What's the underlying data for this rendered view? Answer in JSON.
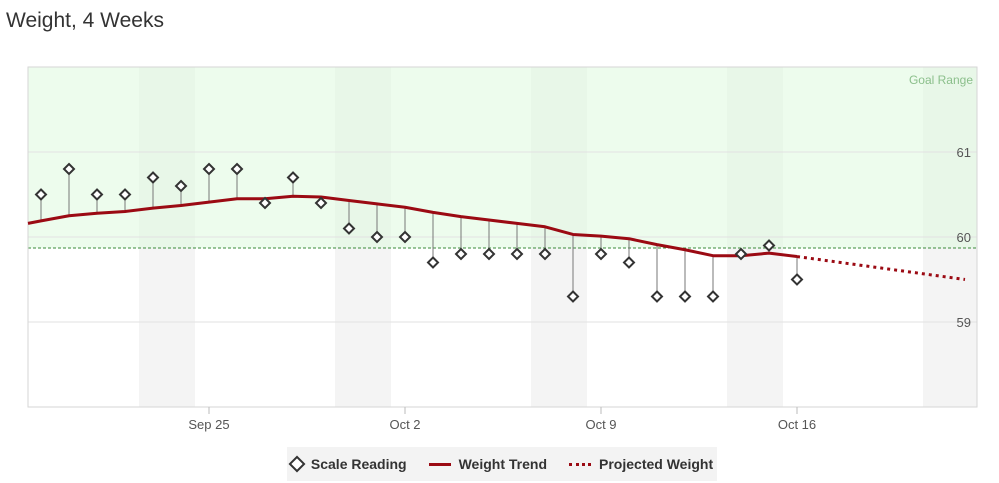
{
  "title": "Weight, 4 Weeks",
  "chart_data": {
    "type": "line",
    "title": "Weight, 4 Weeks",
    "x_ticks": [
      "Sep 25",
      "Oct 2",
      "Oct 9",
      "Oct 16"
    ],
    "x_range": [
      "Sep 19",
      "Oct 22"
    ],
    "y_range": [
      58,
      62
    ],
    "y_ticks": [
      59,
      60,
      61
    ],
    "goal_range": {
      "label": "Goal Range",
      "from": 59.87,
      "to": 62
    },
    "series": [
      {
        "name": "Scale Reading",
        "style": "diamond-markers",
        "color": "#333333",
        "x": [
          "Sep 19",
          "Sep 20",
          "Sep 21",
          "Sep 22",
          "Sep 23",
          "Sep 24",
          "Sep 25",
          "Sep 26",
          "Sep 27",
          "Sep 28",
          "Sep 29",
          "Sep 30",
          "Oct 1",
          "Oct 2",
          "Oct 3",
          "Oct 4",
          "Oct 5",
          "Oct 6",
          "Oct 7",
          "Oct 8",
          "Oct 9",
          "Oct 10",
          "Oct 11",
          "Oct 12",
          "Oct 13",
          "Oct 14",
          "Oct 15",
          "Oct 16"
        ],
        "values": [
          60.5,
          60.8,
          60.5,
          60.5,
          60.7,
          60.6,
          60.8,
          60.8,
          60.4,
          60.7,
          60.4,
          60.1,
          60.0,
          60.0,
          59.7,
          59.8,
          59.8,
          59.8,
          59.8,
          59.3,
          59.8,
          59.7,
          59.3,
          59.3,
          59.3,
          59.8,
          59.9,
          59.5
        ]
      },
      {
        "name": "Weight Trend",
        "style": "solid-line",
        "color": "#9b0a13",
        "x": [
          "Sep 18",
          "Sep 19",
          "Sep 20",
          "Sep 21",
          "Sep 22",
          "Sep 23",
          "Sep 24",
          "Sep 25",
          "Sep 26",
          "Sep 27",
          "Sep 28",
          "Sep 29",
          "Sep 30",
          "Oct 1",
          "Oct 2",
          "Oct 3",
          "Oct 4",
          "Oct 5",
          "Oct 6",
          "Oct 7",
          "Oct 8",
          "Oct 9",
          "Oct 10",
          "Oct 11",
          "Oct 12",
          "Oct 13",
          "Oct 14",
          "Oct 15",
          "Oct 16"
        ],
        "values": [
          60.16,
          60.19,
          60.25,
          60.28,
          60.3,
          60.34,
          60.37,
          60.41,
          60.45,
          60.45,
          60.48,
          60.47,
          60.43,
          60.39,
          60.35,
          60.29,
          60.24,
          60.2,
          60.16,
          60.12,
          60.03,
          60.01,
          59.98,
          59.91,
          59.85,
          59.78,
          59.78,
          59.81,
          59.77
        ]
      },
      {
        "name": "Projected Weight",
        "style": "dotted-line",
        "color": "#9b0a13",
        "x": [
          "Oct 16",
          "Oct 22"
        ],
        "values": [
          59.77,
          59.5
        ]
      }
    ],
    "legend": {
      "position": "bottom-center",
      "items": [
        "Scale Reading",
        "Weight Trend",
        "Projected Weight"
      ]
    },
    "colors": {
      "goal_fill": "#effcef",
      "weekend_band": "#f4f4f4",
      "trend": "#9b0a13",
      "goal_line": "#3a8a3a"
    }
  }
}
